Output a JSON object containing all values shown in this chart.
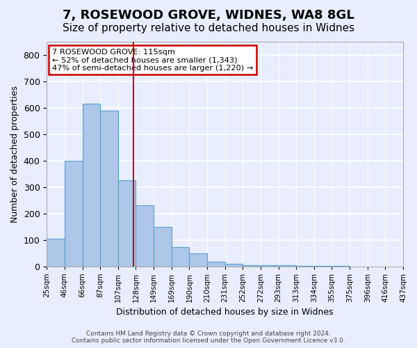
{
  "title1": "7, ROSEWOOD GROVE, WIDNES, WA8 8GL",
  "title2": "Size of property relative to detached houses in Widnes",
  "xlabel": "Distribution of detached houses by size in Widnes",
  "ylabel": "Number of detached properties",
  "bin_labels": [
    "25sqm",
    "46sqm",
    "66sqm",
    "87sqm",
    "107sqm",
    "128sqm",
    "149sqm",
    "169sqm",
    "190sqm",
    "210sqm",
    "231sqm",
    "252sqm",
    "272sqm",
    "293sqm",
    "313sqm",
    "334sqm",
    "355sqm",
    "375sqm",
    "396sqm",
    "416sqm",
    "437sqm"
  ],
  "bar_values": [
    103,
    400,
    615,
    590,
    325,
    230,
    150,
    73,
    48,
    18,
    8,
    5,
    4,
    3,
    2,
    1,
    1,
    0,
    0,
    0
  ],
  "bar_color": "#aec6e8",
  "bar_edgecolor": "#5a9fd4",
  "vline_color": "#cc0000",
  "ylim": [
    0,
    850
  ],
  "yticks": [
    0,
    100,
    200,
    300,
    400,
    500,
    600,
    700,
    800
  ],
  "annotation_text": "7 ROSEWOOD GROVE: 115sqm\n← 52% of detached houses are smaller (1,343)\n47% of semi-detached houses are larger (1,220) →",
  "annotation_box_color": "#cc0000",
  "footer1": "Contains HM Land Registry data © Crown copyright and database right 2024.",
  "footer2": "Contains public sector information licensed under the Open Government Licence v3.0.",
  "bg_color": "#e8eeff",
  "grid_color": "#ffffff",
  "title1_fontsize": 13,
  "title2_fontsize": 11
}
